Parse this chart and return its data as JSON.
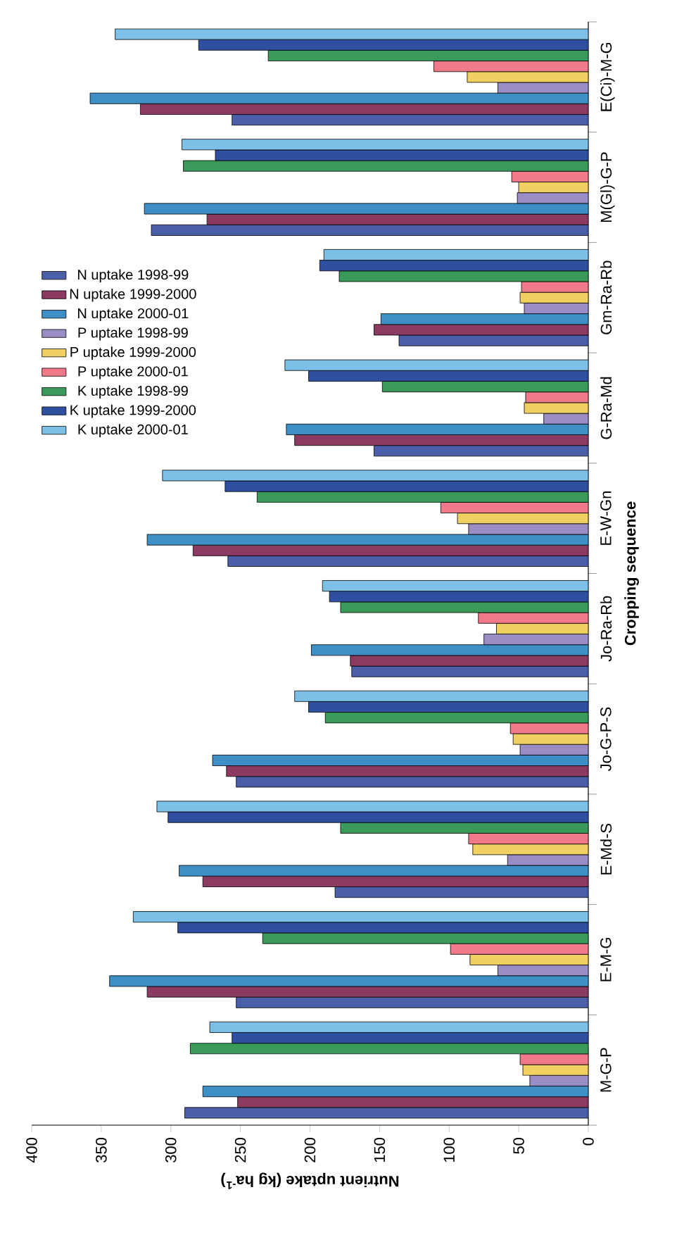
{
  "chart_data": {
    "type": "bar",
    "orientation": "horizontal",
    "categories": [
      "E(Ci)-M-G",
      "M(Gl)-G-P",
      "Gm-Ra-Rb",
      "G-Ra-Md",
      "E-W-Gn",
      "Jo-Ra-Rb",
      "Jo-G-P-S",
      "E-Md-S",
      "E-M-G",
      "M-G-P"
    ],
    "series": [
      {
        "name": "N uptake 1998-99",
        "color": "#4a5fa8",
        "values": [
          256,
          314,
          136,
          154,
          259,
          170,
          253,
          182,
          253,
          290
        ]
      },
      {
        "name": "N uptake 1999-2000",
        "color": "#8b3a62",
        "values": [
          322,
          274,
          154,
          211,
          284,
          171,
          260,
          277,
          317,
          252
        ]
      },
      {
        "name": "N uptake 2000-01",
        "color": "#3d8fc6",
        "values": [
          358,
          319,
          149,
          217,
          317,
          199,
          270,
          294,
          344,
          277
        ]
      },
      {
        "name": "P uptake 1998-99",
        "color": "#9a8cc4",
        "values": [
          65,
          51,
          46,
          32,
          86,
          75,
          49,
          58,
          65,
          42
        ]
      },
      {
        "name": "P uptake 1999-2000",
        "color": "#f0d060",
        "values": [
          87,
          50,
          49,
          46,
          94,
          66,
          54,
          83,
          85,
          47
        ]
      },
      {
        "name": "P uptake 2000-01",
        "color": "#f07a8a",
        "values": [
          111,
          55,
          48,
          45,
          106,
          79,
          56,
          86,
          99,
          49
        ]
      },
      {
        "name": "K uptake 1998-99",
        "color": "#3a9a5a",
        "values": [
          230,
          291,
          179,
          148,
          238,
          178,
          189,
          178,
          234,
          286
        ]
      },
      {
        "name": "K uptake 1999-2000",
        "color": "#2f4fa0",
        "values": [
          280,
          268,
          193,
          201,
          261,
          186,
          201,
          302,
          295,
          256
        ]
      },
      {
        "name": "K uptake 2000-01",
        "color": "#7cc0e8",
        "values": [
          340,
          292,
          190,
          218,
          306,
          191,
          211,
          310,
          327,
          272
        ]
      }
    ],
    "xlim": [
      400,
      0
    ],
    "xticks": [
      0,
      50,
      100,
      150,
      200,
      250,
      300,
      350,
      400
    ],
    "xlabel": "Nutrient uptake (kg ha$^{-1}$)",
    "ylabel": "Cropping sequence",
    "legend": "left"
  }
}
